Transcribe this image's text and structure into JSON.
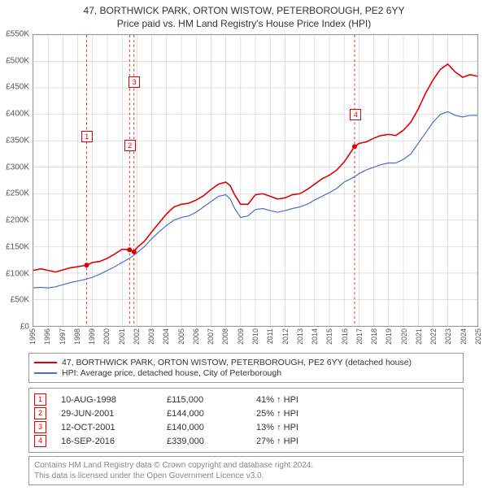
{
  "title": "47, BORTHWICK PARK, ORTON WISTOW, PETERBOROUGH, PE2 6YY",
  "subtitle": "Price paid vs. HM Land Registry's House Price Index (HPI)",
  "chart": {
    "type": "line",
    "background_color": "#ffffff",
    "border_color": "#888888",
    "grid_color": "#cccccc",
    "xlim": [
      1995,
      2025
    ],
    "ylim": [
      0,
      550
    ],
    "ytick_step": 50,
    "y_unit_prefix": "£",
    "y_unit_suffix": "K",
    "xticks": [
      1995,
      1996,
      1997,
      1998,
      1999,
      2000,
      2001,
      2002,
      2003,
      2004,
      2005,
      2006,
      2007,
      2008,
      2009,
      2010,
      2011,
      2012,
      2013,
      2014,
      2015,
      2016,
      2017,
      2018,
      2019,
      2020,
      2021,
      2022,
      2023,
      2024,
      2025
    ],
    "series": [
      {
        "name": "47, BORTHWICK PARK, ORTON WISTOW, PETERBOROUGH, PE2 6YY (detached house)",
        "color": "#e00000",
        "width": 1.6,
        "points": [
          [
            1995,
            105
          ],
          [
            1995.5,
            108
          ],
          [
            1996,
            105
          ],
          [
            1996.5,
            102
          ],
          [
            1997,
            106
          ],
          [
            1997.5,
            110
          ],
          [
            1998,
            112
          ],
          [
            1998.6,
            115
          ],
          [
            1999,
            120
          ],
          [
            1999.5,
            122
          ],
          [
            2000,
            128
          ],
          [
            2000.5,
            136
          ],
          [
            2001,
            145
          ],
          [
            2001.5,
            144
          ],
          [
            2001.8,
            140
          ],
          [
            2002,
            148
          ],
          [
            2002.5,
            160
          ],
          [
            2003,
            178
          ],
          [
            2003.5,
            195
          ],
          [
            2004,
            212
          ],
          [
            2004.5,
            225
          ],
          [
            2005,
            230
          ],
          [
            2005.5,
            232
          ],
          [
            2006,
            238
          ],
          [
            2006.5,
            246
          ],
          [
            2007,
            258
          ],
          [
            2007.5,
            268
          ],
          [
            2008,
            272
          ],
          [
            2008.3,
            265
          ],
          [
            2008.6,
            248
          ],
          [
            2009,
            230
          ],
          [
            2009.5,
            230
          ],
          [
            2010,
            248
          ],
          [
            2010.5,
            250
          ],
          [
            2011,
            245
          ],
          [
            2011.5,
            240
          ],
          [
            2012,
            242
          ],
          [
            2012.5,
            248
          ],
          [
            2013,
            250
          ],
          [
            2013.5,
            258
          ],
          [
            2014,
            268
          ],
          [
            2014.5,
            278
          ],
          [
            2015,
            285
          ],
          [
            2015.5,
            295
          ],
          [
            2016,
            310
          ],
          [
            2016.7,
            339
          ],
          [
            2017,
            345
          ],
          [
            2017.5,
            348
          ],
          [
            2018,
            355
          ],
          [
            2018.5,
            360
          ],
          [
            2019,
            362
          ],
          [
            2019.5,
            360
          ],
          [
            2020,
            370
          ],
          [
            2020.5,
            385
          ],
          [
            2021,
            410
          ],
          [
            2021.5,
            440
          ],
          [
            2022,
            465
          ],
          [
            2022.5,
            485
          ],
          [
            2023,
            495
          ],
          [
            2023.5,
            480
          ],
          [
            2024,
            470
          ],
          [
            2024.5,
            475
          ],
          [
            2025,
            472
          ]
        ]
      },
      {
        "name": "HPI: Average price, detached house, City of Peterborough",
        "color": "#4a6fc4",
        "width": 1.2,
        "points": [
          [
            1995,
            72
          ],
          [
            1995.5,
            73
          ],
          [
            1996,
            72
          ],
          [
            1996.5,
            74
          ],
          [
            1997,
            78
          ],
          [
            1997.5,
            82
          ],
          [
            1998,
            85
          ],
          [
            1998.5,
            88
          ],
          [
            1999,
            92
          ],
          [
            1999.5,
            98
          ],
          [
            2000,
            105
          ],
          [
            2000.5,
            112
          ],
          [
            2001,
            120
          ],
          [
            2001.5,
            128
          ],
          [
            2002,
            138
          ],
          [
            2002.5,
            150
          ],
          [
            2003,
            165
          ],
          [
            2003.5,
            178
          ],
          [
            2004,
            190
          ],
          [
            2004.5,
            200
          ],
          [
            2005,
            205
          ],
          [
            2005.5,
            208
          ],
          [
            2006,
            215
          ],
          [
            2006.5,
            225
          ],
          [
            2007,
            235
          ],
          [
            2007.5,
            245
          ],
          [
            2008,
            248
          ],
          [
            2008.3,
            240
          ],
          [
            2008.6,
            222
          ],
          [
            2009,
            205
          ],
          [
            2009.5,
            208
          ],
          [
            2010,
            220
          ],
          [
            2010.5,
            222
          ],
          [
            2011,
            218
          ],
          [
            2011.5,
            215
          ],
          [
            2012,
            218
          ],
          [
            2012.5,
            222
          ],
          [
            2013,
            225
          ],
          [
            2013.5,
            230
          ],
          [
            2014,
            238
          ],
          [
            2014.5,
            245
          ],
          [
            2015,
            252
          ],
          [
            2015.5,
            260
          ],
          [
            2016,
            272
          ],
          [
            2016.7,
            282
          ],
          [
            2017,
            288
          ],
          [
            2017.5,
            295
          ],
          [
            2018,
            300
          ],
          [
            2018.5,
            305
          ],
          [
            2019,
            308
          ],
          [
            2019.5,
            308
          ],
          [
            2020,
            315
          ],
          [
            2020.5,
            325
          ],
          [
            2021,
            345
          ],
          [
            2021.5,
            365
          ],
          [
            2022,
            385
          ],
          [
            2022.5,
            400
          ],
          [
            2023,
            405
          ],
          [
            2023.5,
            398
          ],
          [
            2024,
            395
          ],
          [
            2024.5,
            398
          ],
          [
            2025,
            398
          ]
        ]
      }
    ],
    "sale_markers": [
      {
        "n": 1,
        "x": 1998.6,
        "y": 115,
        "label_y_offset": -160
      },
      {
        "n": 2,
        "x": 2001.5,
        "y": 144,
        "label_y_offset": -130
      },
      {
        "n": 3,
        "x": 2001.8,
        "y": 140,
        "label_y_offset": -210
      },
      {
        "n": 4,
        "x": 2016.7,
        "y": 339,
        "label_y_offset": -40
      }
    ],
    "marker_line_color": "#e00000",
    "marker_line_dash": "3,3"
  },
  "legend": [
    {
      "color": "#e00000",
      "label": "47, BORTHWICK PARK, ORTON WISTOW, PETERBOROUGH, PE2 6YY (detached house)"
    },
    {
      "color": "#4a6fc4",
      "label": "HPI: Average price, detached house, City of Peterborough"
    }
  ],
  "sales": [
    {
      "n": 1,
      "date": "10-AUG-1998",
      "price": "£115,000",
      "pct": "41% ↑ HPI"
    },
    {
      "n": 2,
      "date": "29-JUN-2001",
      "price": "£144,000",
      "pct": "25% ↑ HPI"
    },
    {
      "n": 3,
      "date": "12-OCT-2001",
      "price": "£140,000",
      "pct": "13% ↑ HPI"
    },
    {
      "n": 4,
      "date": "16-SEP-2016",
      "price": "£339,000",
      "pct": "27% ↑ HPI"
    }
  ],
  "footer": {
    "line1": "Contains HM Land Registry data © Crown copyright and database right 2024.",
    "line2": "This data is licensed under the Open Government Licence v3.0."
  }
}
